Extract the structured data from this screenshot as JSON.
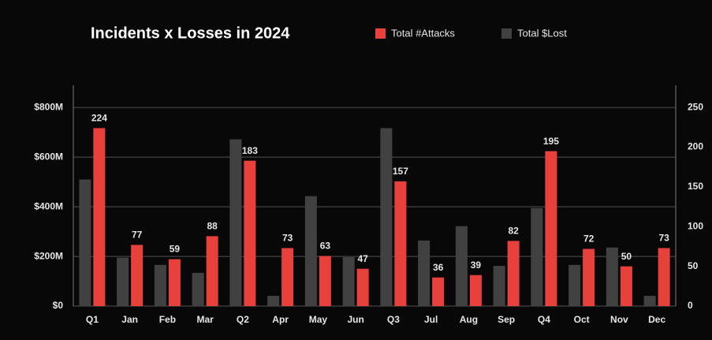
{
  "chart_data": {
    "type": "bar",
    "title": "Incidents x Losses in 2024",
    "categories": [
      "Q1",
      "Jan",
      "Feb",
      "Mar",
      "Q2",
      "Apr",
      "May",
      "Jun",
      "Q3",
      "Jul",
      "Aug",
      "Sep",
      "Q4",
      "Oct",
      "Nov",
      "Dec"
    ],
    "series": [
      {
        "name": "Total #Attacks",
        "color": "#e8413c",
        "axis": "y2",
        "values": [
          224,
          77,
          59,
          88,
          183,
          73,
          63,
          47,
          157,
          36,
          39,
          82,
          195,
          72,
          50,
          73
        ]
      },
      {
        "name": "Total $Lost",
        "color": "#414141",
        "values": [
          510,
          195,
          166,
          134,
          672,
          41,
          443,
          197,
          717,
          264,
          322,
          162,
          395,
          166,
          236,
          41
        ]
      }
    ],
    "ylim": [
      0,
      890
    ],
    "yticks": [
      {
        "value": 0,
        "label": "$0"
      },
      {
        "value": 200,
        "label": "$200M"
      },
      {
        "value": 400,
        "label": "$400M"
      },
      {
        "value": 600,
        "label": "$600M"
      },
      {
        "value": 800,
        "label": "$800M"
      }
    ],
    "y2lim": [
      0,
      278
    ],
    "y2ticks": [
      0,
      50,
      100,
      150,
      200,
      250
    ],
    "grid": true
  }
}
